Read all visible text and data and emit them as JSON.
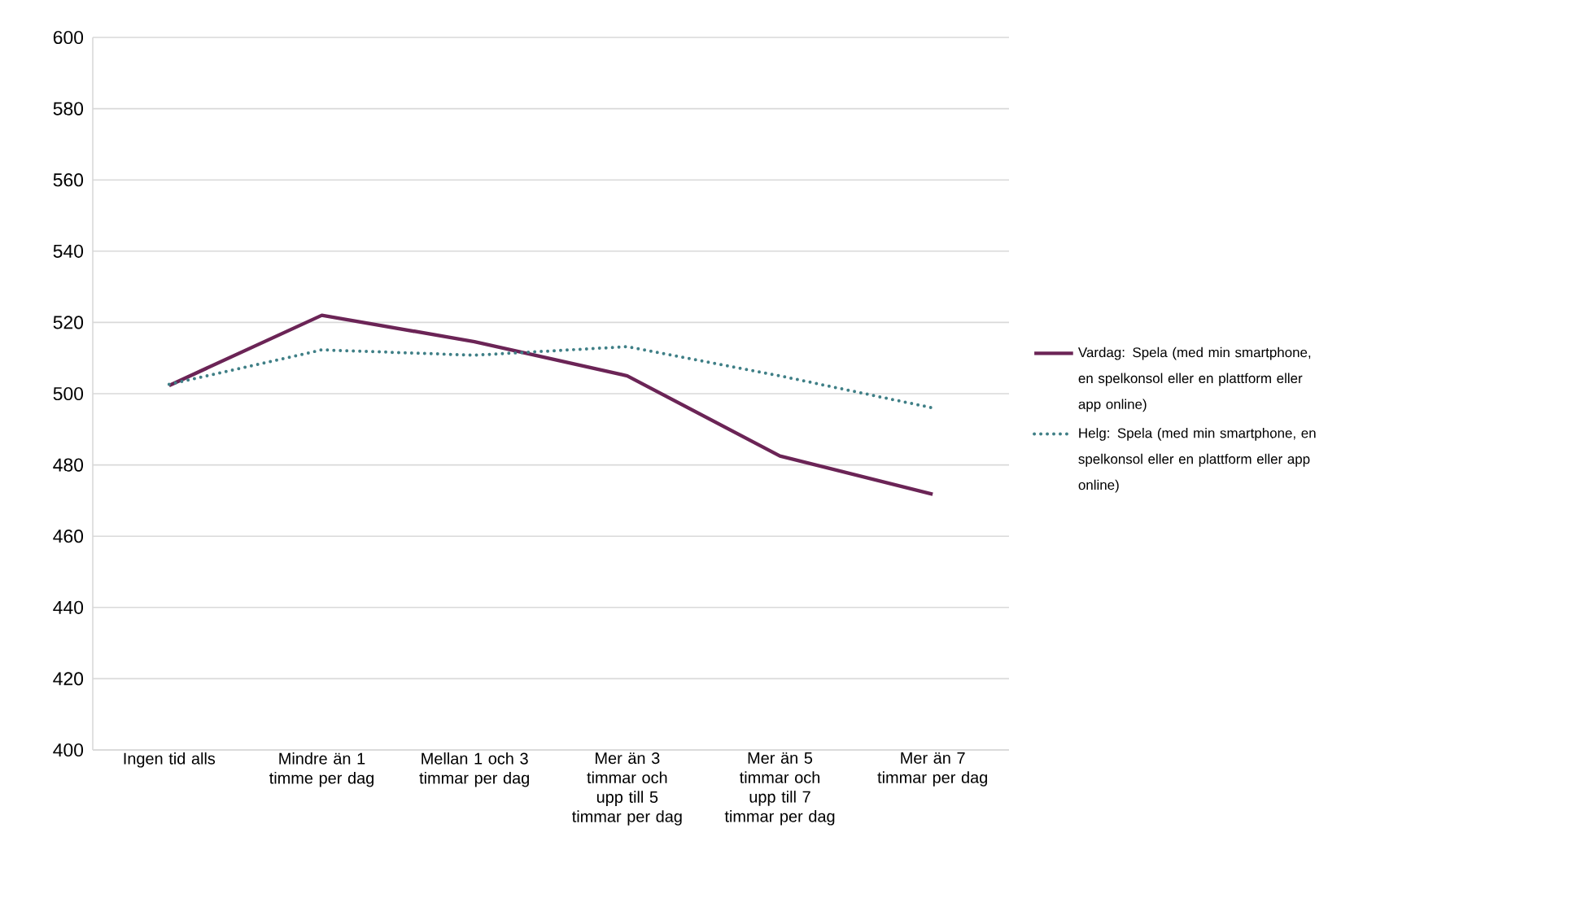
{
  "chart_data": {
    "type": "line",
    "categories": [
      "Ingen tid alls",
      "Mindre än 1 timme per dag",
      "Mellan 1 och 3 timmar per dag",
      "Mer än 3 timmar och upp till 5 timmar per dag",
      "Mer än 5 timmar och upp till 7 timmar per dag",
      "Mer än 7 timmar per dag"
    ],
    "series": [
      {
        "name": "Vardag: Spela (med min smartphone, en spelkonsol eller en plattform eller app online)",
        "color": "#6b2456",
        "line_style": "solid",
        "values": [
          502.3,
          522,
          514.6,
          505,
          482.5,
          471.8
        ]
      },
      {
        "name": "Helg: Spela (med min smartphone, en spelkonsol eller en plattform eller app online)",
        "color": "#3f7f86",
        "line_style": "dotted",
        "values": [
          502.6,
          512.3,
          510.8,
          513.2,
          505,
          496
        ]
      }
    ],
    "ylim": [
      400,
      600
    ],
    "yticks": [
      400,
      420,
      440,
      460,
      480,
      500,
      520,
      540,
      560,
      580,
      600
    ],
    "grid": "y",
    "legend": "right",
    "marker": "none"
  }
}
